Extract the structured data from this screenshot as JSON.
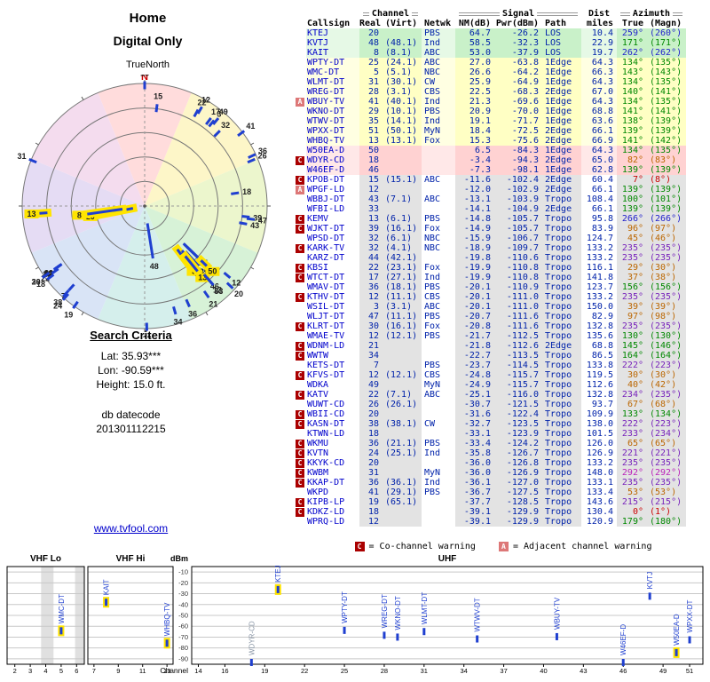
{
  "radar": {
    "title_line1": "Home",
    "title_line2": "Digital Only",
    "orientation_label": "TrueNorth",
    "north_label": "N",
    "sector_colors": [
      "#ffdcdc",
      "#fdf6c8",
      "#ecf6cd",
      "#d7f2d7",
      "#d5efec",
      "#d9e4f6",
      "#e5dcf4",
      "#f4dcee"
    ]
  },
  "search_criteria": {
    "heading": "Search Criteria",
    "lat_label": "Lat: 35.93***",
    "lon_label": "Lon: -90.59***",
    "height_label": "Height: 15.0 ft.",
    "datecode_label": "db datecode",
    "datecode_value": "201301112215"
  },
  "site_link": "www.tvfool.com",
  "legend": {
    "co_symbol": "C",
    "co_text": "= Co-channel warning",
    "adj_symbol": "A",
    "adj_text": "= Adjacent channel warning"
  },
  "colors": {
    "co": "#aa0000",
    "adj": "#dd7777",
    "highlight": "#ffe400",
    "mark": "#1f3fd0",
    "link": "#0000cc",
    "muted_label": "#8a96a6",
    "band": {
      "green": "#c9f1c9",
      "yellow": "#ffffc4",
      "pink": "#ffd2d2",
      "gray": "#e3e3e3"
    },
    "band_light": {
      "green": "#e6f9e6",
      "yellow": "#ffffe2",
      "pink": "#ffe8e8",
      "gray": "#ffffff"
    },
    "az": {
      "red": "#cc0000",
      "orange": "#bb6600",
      "green": "#008800",
      "purple": "#7722bb",
      "blue": "#2222cc",
      "magenta": "#bb22bb"
    }
  },
  "table": {
    "group_headers": {
      "channel": "Channel",
      "signal": "Signal",
      "dist": "Dist",
      "azimuth": "Azimuth"
    },
    "sub_headers": {
      "callsign": "Callsign",
      "real": "Real",
      "virt": "(Virt)",
      "netwk": "Netwk",
      "nm": "NM(dB)",
      "pwr": "Pwr(dBm)",
      "path": "Path",
      "miles": "miles",
      "true": "True",
      "magn": "(Magn)"
    },
    "rows": [
      {
        "flag": "",
        "callsign": "KTEJ",
        "real": "20",
        "virt": "",
        "netwk": "PBS",
        "nm": "64.7",
        "pwr": "-26.2",
        "path": "LOS",
        "miles": "10.4",
        "az_true": "259°",
        "az_magn": "(260°)",
        "hl": true
      },
      {
        "flag": "",
        "callsign": "KVTJ",
        "real": "48",
        "virt": "(48.1)",
        "netwk": "Ind",
        "nm": "58.5",
        "pwr": "-32.3",
        "path": "LOS",
        "miles": "22.9",
        "az_true": "171°",
        "az_magn": "(171°)"
      },
      {
        "flag": "",
        "callsign": "KAIT",
        "real": "8",
        "virt": "(8.1)",
        "netwk": "ABC",
        "nm": "53.0",
        "pwr": "-37.9",
        "path": "LOS",
        "miles": "19.7",
        "az_true": "262°",
        "az_magn": "(262°)",
        "hl": true
      },
      {
        "flag": "",
        "callsign": "WPTY-DT",
        "real": "25",
        "virt": "(24.1)",
        "netwk": "ABC",
        "nm": "27.0",
        "pwr": "-63.8",
        "path": "1Edge",
        "miles": "64.3",
        "az_true": "134°",
        "az_magn": "(135°)"
      },
      {
        "flag": "",
        "callsign": "WMC-DT",
        "real": "5",
        "virt": "(5.1)",
        "netwk": "NBC",
        "nm": "26.6",
        "pwr": "-64.2",
        "path": "1Edge",
        "miles": "66.3",
        "az_true": "143°",
        "az_magn": "(143°)",
        "hl": true
      },
      {
        "flag": "",
        "callsign": "WLMT-DT",
        "real": "31",
        "virt": "(30.1)",
        "netwk": "CW",
        "nm": "25.9",
        "pwr": "-64.9",
        "path": "1Edge",
        "miles": "64.3",
        "az_true": "134°",
        "az_magn": "(135°)"
      },
      {
        "flag": "",
        "callsign": "WREG-DT",
        "real": "28",
        "virt": "(3.1)",
        "netwk": "CBS",
        "nm": "22.5",
        "pwr": "-68.3",
        "path": "2Edge",
        "miles": "67.0",
        "az_true": "140°",
        "az_magn": "(141°)"
      },
      {
        "flag": "A",
        "callsign": "WBUY-TV",
        "real": "41",
        "virt": "(40.1)",
        "netwk": "Ind",
        "nm": "21.3",
        "pwr": "-69.6",
        "path": "1Edge",
        "miles": "64.3",
        "az_true": "134°",
        "az_magn": "(135°)"
      },
      {
        "flag": "",
        "callsign": "WKNO-DT",
        "real": "29",
        "virt": "(10.1)",
        "netwk": "PBS",
        "nm": "20.9",
        "pwr": "-70.0",
        "path": "1Edge",
        "miles": "68.8",
        "az_true": "141°",
        "az_magn": "(141°)"
      },
      {
        "flag": "",
        "callsign": "WTWV-DT",
        "real": "35",
        "virt": "(14.1)",
        "netwk": "Ind",
        "nm": "19.1",
        "pwr": "-71.7",
        "path": "1Edge",
        "miles": "63.6",
        "az_true": "138°",
        "az_magn": "(139°)"
      },
      {
        "flag": "",
        "callsign": "WPXX-DT",
        "real": "51",
        "virt": "(50.1)",
        "netwk": "MyN",
        "nm": "18.4",
        "pwr": "-72.5",
        "path": "2Edge",
        "miles": "66.1",
        "az_true": "139°",
        "az_magn": "(139°)"
      },
      {
        "flag": "",
        "callsign": "WHBQ-TV",
        "real": "13",
        "virt": "(13.1)",
        "netwk": "Fox",
        "nm": "15.3",
        "pwr": "-75.6",
        "path": "2Edge",
        "miles": "66.9",
        "az_true": "141°",
        "az_magn": "(142°)",
        "hl": true
      },
      {
        "flag": "",
        "callsign": "W50EA-D",
        "real": "50",
        "virt": "",
        "netwk": "",
        "nm": "6.5",
        "pwr": "-84.3",
        "path": "1Edge",
        "miles": "64.3",
        "az_true": "134°",
        "az_magn": "(135°)",
        "hl": true
      },
      {
        "flag": "C",
        "callsign": "WDYR-CD",
        "real": "18",
        "virt": "",
        "netwk": "",
        "nm": "-3.4",
        "pwr": "-94.3",
        "path": "2Edge",
        "miles": "65.0",
        "az_true": "82°",
        "az_magn": "(83°)"
      },
      {
        "flag": "",
        "callsign": "W46EF-D",
        "real": "46",
        "virt": "",
        "netwk": "",
        "nm": "-7.3",
        "pwr": "-98.1",
        "path": "1Edge",
        "miles": "62.8",
        "az_true": "139°",
        "az_magn": "(139°)"
      },
      {
        "flag": "C",
        "callsign": "KPOB-DT",
        "real": "15",
        "virt": "(15.1)",
        "netwk": "ABC",
        "nm": "-11.6",
        "pwr": "-102.4",
        "path": "2Edge",
        "miles": "60.4",
        "az_true": "7°",
        "az_magn": "(8°)"
      },
      {
        "flag": "A",
        "callsign": "WPGF-LD",
        "real": "12",
        "virt": "",
        "netwk": "",
        "nm": "-12.0",
        "pwr": "-102.9",
        "path": "2Edge",
        "miles": "66.1",
        "az_true": "139°",
        "az_magn": "(139°)"
      },
      {
        "flag": "",
        "callsign": "WBBJ-DT",
        "real": "43",
        "virt": "(7.1)",
        "netwk": "ABC",
        "nm": "-13.1",
        "pwr": "-103.9",
        "path": "Tropo",
        "miles": "108.4",
        "az_true": "100°",
        "az_magn": "(101°)"
      },
      {
        "flag": "",
        "callsign": "WFBI-LD",
        "real": "33",
        "virt": "",
        "netwk": "",
        "nm": "-14.1",
        "pwr": "-104.9",
        "path": "2Edge",
        "miles": "66.1",
        "az_true": "139°",
        "az_magn": "(139°)"
      },
      {
        "flag": "C",
        "callsign": "KEMV",
        "real": "13",
        "virt": "(6.1)",
        "netwk": "PBS",
        "nm": "-14.8",
        "pwr": "-105.7",
        "path": "Tropo",
        "miles": "95.8",
        "az_true": "266°",
        "az_magn": "(266°)",
        "hl": true
      },
      {
        "flag": "C",
        "callsign": "WJKT-DT",
        "real": "39",
        "virt": "(16.1)",
        "netwk": "Fox",
        "nm": "-14.9",
        "pwr": "-105.7",
        "path": "Tropo",
        "miles": "83.9",
        "az_true": "96°",
        "az_magn": "(97°)"
      },
      {
        "flag": "",
        "callsign": "WPSD-DT",
        "real": "32",
        "virt": "(6.1)",
        "netwk": "NBC",
        "nm": "-15.9",
        "pwr": "-106.7",
        "path": "Tropo",
        "miles": "124.7",
        "az_true": "45°",
        "az_magn": "(46°)"
      },
      {
        "flag": "C",
        "callsign": "KARK-TV",
        "real": "32",
        "virt": "(4.1)",
        "netwk": "NBC",
        "nm": "-18.9",
        "pwr": "-109.7",
        "path": "Tropo",
        "miles": "133.2",
        "az_true": "235°",
        "az_magn": "(235°)"
      },
      {
        "flag": "",
        "callsign": "KARZ-DT",
        "real": "44",
        "virt": "(42.1)",
        "netwk": "",
        "nm": "-19.8",
        "pwr": "-110.6",
        "path": "Tropo",
        "miles": "133.2",
        "az_true": "235°",
        "az_magn": "(235°)"
      },
      {
        "flag": "C",
        "callsign": "KBSI",
        "real": "22",
        "virt": "(23.1)",
        "netwk": "Fox",
        "nm": "-19.9",
        "pwr": "-110.8",
        "path": "Tropo",
        "miles": "116.1",
        "az_true": "29°",
        "az_magn": "(30°)"
      },
      {
        "flag": "C",
        "callsign": "WTCT-DT",
        "real": "17",
        "virt": "(27.1)",
        "netwk": "Ind",
        "nm": "-19.9",
        "pwr": "-110.8",
        "path": "Tropo",
        "miles": "141.8",
        "az_true": "37°",
        "az_magn": "(38°)"
      },
      {
        "flag": "",
        "callsign": "WMAV-DT",
        "real": "36",
        "virt": "(18.1)",
        "netwk": "PBS",
        "nm": "-20.1",
        "pwr": "-110.9",
        "path": "Tropo",
        "miles": "123.7",
        "az_true": "156°",
        "az_magn": "(156°)"
      },
      {
        "flag": "C",
        "callsign": "KTHV-DT",
        "real": "12",
        "virt": "(11.1)",
        "netwk": "CBS",
        "nm": "-20.1",
        "pwr": "-111.0",
        "path": "Tropo",
        "miles": "133.2",
        "az_true": "235°",
        "az_magn": "(235°)"
      },
      {
        "flag": "",
        "callsign": "WSIL-DT",
        "real": "3",
        "virt": "(3.1)",
        "netwk": "ABC",
        "nm": "-20.1",
        "pwr": "-111.0",
        "path": "Tropo",
        "miles": "150.0",
        "az_true": "39°",
        "az_magn": "(39°)"
      },
      {
        "flag": "",
        "callsign": "WLJT-DT",
        "real": "47",
        "virt": "(11.1)",
        "netwk": "PBS",
        "nm": "-20.7",
        "pwr": "-111.6",
        "path": "Tropo",
        "miles": "82.9",
        "az_true": "97°",
        "az_magn": "(98°)"
      },
      {
        "flag": "C",
        "callsign": "KLRT-DT",
        "real": "30",
        "virt": "(16.1)",
        "netwk": "Fox",
        "nm": "-20.8",
        "pwr": "-111.6",
        "path": "Tropo",
        "miles": "132.8",
        "az_true": "235°",
        "az_magn": "(235°)"
      },
      {
        "flag": "",
        "callsign": "WMAE-TV",
        "real": "12",
        "virt": "(12.1)",
        "netwk": "PBS",
        "nm": "-21.7",
        "pwr": "-112.5",
        "path": "Tropo",
        "miles": "135.6",
        "az_true": "130°",
        "az_magn": "(130°)"
      },
      {
        "flag": "C",
        "callsign": "WDNM-LD",
        "real": "21",
        "virt": "",
        "netwk": "",
        "nm": "-21.8",
        "pwr": "-112.6",
        "path": "2Edge",
        "miles": "68.8",
        "az_true": "145°",
        "az_magn": "(146°)"
      },
      {
        "flag": "C",
        "callsign": "WWTW",
        "real": "34",
        "virt": "",
        "netwk": "",
        "nm": "-22.7",
        "pwr": "-113.5",
        "path": "Tropo",
        "miles": "86.5",
        "az_true": "164°",
        "az_magn": "(164°)"
      },
      {
        "flag": "",
        "callsign": "KETS-DT",
        "real": "7",
        "virt": "",
        "netwk": "PBS",
        "nm": "-23.7",
        "pwr": "-114.5",
        "path": "Tropo",
        "miles": "133.8",
        "az_true": "222°",
        "az_magn": "(223°)"
      },
      {
        "flag": "C",
        "callsign": "KFVS-DT",
        "real": "12",
        "virt": "(12.1)",
        "netwk": "CBS",
        "nm": "-24.8",
        "pwr": "-115.7",
        "path": "Tropo",
        "miles": "119.5",
        "az_true": "30°",
        "az_magn": "(30°)"
      },
      {
        "flag": "",
        "callsign": "WDKA",
        "real": "49",
        "virt": "",
        "netwk": "MyN",
        "nm": "-24.9",
        "pwr": "-115.7",
        "path": "Tropo",
        "miles": "112.6",
        "az_true": "40°",
        "az_magn": "(42°)"
      },
      {
        "flag": "C",
        "callsign": "KATV",
        "real": "22",
        "virt": "(7.1)",
        "netwk": "ABC",
        "nm": "-25.1",
        "pwr": "-116.0",
        "path": "Tropo",
        "miles": "132.8",
        "az_true": "234°",
        "az_magn": "(235°)"
      },
      {
        "flag": "",
        "callsign": "WUWT-CD",
        "real": "26",
        "virt": "(26.1)",
        "netwk": "",
        "nm": "-30.7",
        "pwr": "-121.5",
        "path": "Tropo",
        "miles": "93.7",
        "az_true": "67°",
        "az_magn": "(68°)"
      },
      {
        "flag": "C",
        "callsign": "WBII-CD",
        "real": "20",
        "virt": "",
        "netwk": "",
        "nm": "-31.6",
        "pwr": "-122.4",
        "path": "Tropo",
        "miles": "109.9",
        "az_true": "133°",
        "az_magn": "(134°)"
      },
      {
        "flag": "C",
        "callsign": "KASN-DT",
        "real": "38",
        "virt": "(38.1)",
        "netwk": "CW",
        "nm": "-32.7",
        "pwr": "-123.5",
        "path": "Tropo",
        "miles": "138.0",
        "az_true": "222°",
        "az_magn": "(223°)"
      },
      {
        "flag": "",
        "callsign": "KTWN-LD",
        "real": "18",
        "virt": "",
        "netwk": "",
        "nm": "-33.1",
        "pwr": "-123.9",
        "path": "Tropo",
        "miles": "101.5",
        "az_true": "233°",
        "az_magn": "(234°)"
      },
      {
        "flag": "C",
        "callsign": "WKMU",
        "real": "36",
        "virt": "(21.1)",
        "netwk": "PBS",
        "nm": "-33.4",
        "pwr": "-124.2",
        "path": "Tropo",
        "miles": "126.0",
        "az_true": "65°",
        "az_magn": "(65°)"
      },
      {
        "flag": "C",
        "callsign": "KVTN",
        "real": "24",
        "virt": "(25.1)",
        "netwk": "Ind",
        "nm": "-35.8",
        "pwr": "-126.7",
        "path": "Tropo",
        "miles": "126.9",
        "az_true": "221°",
        "az_magn": "(221°)"
      },
      {
        "flag": "C",
        "callsign": "KKYK-CD",
        "real": "20",
        "virt": "",
        "netwk": "",
        "nm": "-36.0",
        "pwr": "-126.8",
        "path": "Tropo",
        "miles": "133.2",
        "az_true": "235°",
        "az_magn": "(235°)"
      },
      {
        "flag": "C",
        "callsign": "KWBM",
        "real": "31",
        "virt": "",
        "netwk": "MyN",
        "nm": "-36.0",
        "pwr": "-126.9",
        "path": "Tropo",
        "miles": "148.0",
        "az_true": "292°",
        "az_magn": "(292°)"
      },
      {
        "flag": "C",
        "callsign": "KKAP-DT",
        "real": "36",
        "virt": "(36.1)",
        "netwk": "Ind",
        "nm": "-36.1",
        "pwr": "-127.0",
        "path": "Tropo",
        "miles": "133.1",
        "az_true": "235°",
        "az_magn": "(235°)"
      },
      {
        "flag": "",
        "callsign": "WKPD",
        "real": "41",
        "virt": "(29.1)",
        "netwk": "PBS",
        "nm": "-36.7",
        "pwr": "-127.5",
        "path": "Tropo",
        "miles": "133.4",
        "az_true": "53°",
        "az_magn": "(53°)"
      },
      {
        "flag": "C",
        "callsign": "KIPB-LP",
        "real": "19",
        "virt": "(65.1)",
        "netwk": "",
        "nm": "-37.7",
        "pwr": "-128.5",
        "path": "Tropo",
        "miles": "143.6",
        "az_true": "215°",
        "az_magn": "(215°)"
      },
      {
        "flag": "C",
        "callsign": "KDKZ-LD",
        "real": "18",
        "virt": "",
        "netwk": "",
        "nm": "-39.1",
        "pwr": "-129.9",
        "path": "Tropo",
        "miles": "130.4",
        "az_true": "0°",
        "az_magn": "(1°)"
      },
      {
        "flag": "",
        "callsign": "WPRQ-LD",
        "real": "12",
        "virt": "",
        "netwk": "",
        "nm": "-39.1",
        "pwr": "-129.9",
        "path": "Tropo",
        "miles": "120.9",
        "az_true": "179°",
        "az_magn": "(180°)"
      }
    ]
  },
  "chart_data": [
    {
      "type": "scatter",
      "name": "azimuth-radar",
      "title": "Home / Digital Only",
      "orientation": "TrueNorth",
      "angle": "azimuth true degrees (N up, clockwise)",
      "radius": "signal strength NM(dB), stronger toward center",
      "points_from": "table.rows (real, az_true, nm)"
    },
    {
      "type": "scatter",
      "name": "signal-by-channel",
      "xlabel": "Channel",
      "ylabel": "dBm",
      "ylim": [
        -95,
        -5
      ],
      "yticks": [
        -10,
        -20,
        -30,
        -40,
        -50,
        -60,
        -70,
        -80,
        -90
      ],
      "grid": true,
      "sections": [
        {
          "label": "VHF Lo",
          "ch_min": 2,
          "ch_max": 6,
          "ticks": [
            2,
            3,
            4,
            5,
            6
          ]
        },
        {
          "label": "VHF Hi",
          "ch_min": 7,
          "ch_max": 13,
          "ticks": [
            7,
            9,
            11,
            13
          ]
        },
        {
          "label": "UHF",
          "ch_min": 14,
          "ch_max": 51,
          "ticks": [
            14,
            16,
            19,
            22,
            25,
            28,
            31,
            34,
            37,
            40,
            43,
            46,
            49,
            51
          ]
        }
      ],
      "points": [
        {
          "callsign": "WMC-DT",
          "channel": 5,
          "dbm": -64.2,
          "hl": true
        },
        {
          "callsign": "KAIT",
          "channel": 8,
          "dbm": -37.9,
          "hl": true
        },
        {
          "callsign": "WHBQ-TV",
          "channel": 13,
          "dbm": -75.6,
          "hl": true
        },
        {
          "callsign": "WDYR-CD",
          "channel": 18,
          "dbm": -94.3,
          "muted": true
        },
        {
          "callsign": "KTEJ",
          "channel": 20,
          "dbm": -26.2,
          "hl": true
        },
        {
          "callsign": "WPTY-DT",
          "channel": 25,
          "dbm": -63.8
        },
        {
          "callsign": "WREG-DT",
          "channel": 28,
          "dbm": -68.3
        },
        {
          "callsign": "WKNO-DT",
          "channel": 29,
          "dbm": -70.0
        },
        {
          "callsign": "WLMT-DT",
          "channel": 31,
          "dbm": -64.9
        },
        {
          "callsign": "WTWV-DT",
          "channel": 35,
          "dbm": -71.7
        },
        {
          "callsign": "WBUY-TV",
          "channel": 41,
          "dbm": -69.6
        },
        {
          "callsign": "W46EF-D",
          "channel": 46,
          "dbm": -98.1
        },
        {
          "callsign": "KVTJ",
          "channel": 48,
          "dbm": -32.3
        },
        {
          "callsign": "W50EA-D",
          "channel": 50,
          "dbm": -84.3,
          "hl": true
        },
        {
          "callsign": "WPXX-DT",
          "channel": 51,
          "dbm": -72.5
        }
      ]
    }
  ]
}
